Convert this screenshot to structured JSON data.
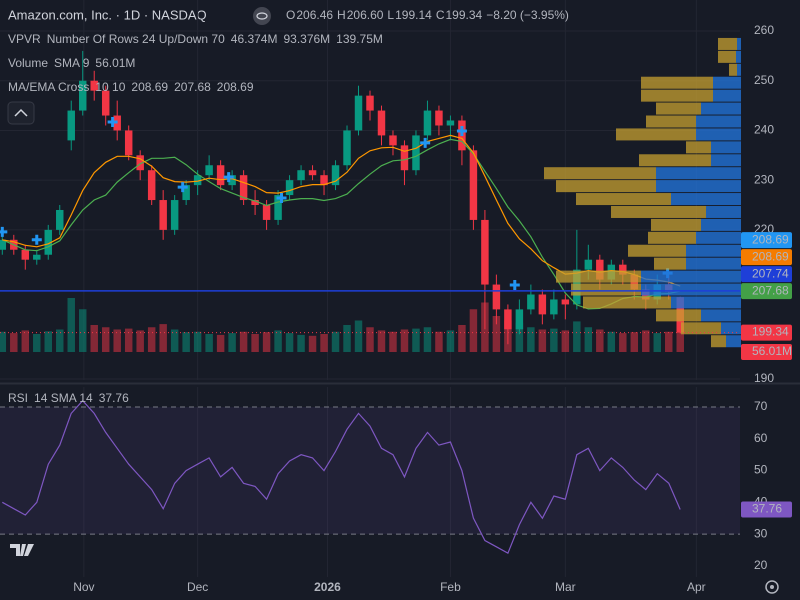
{
  "chart_data": {
    "type": "candlestick",
    "title": "Amazon.com, Inc. · 1D · NASDAQ",
    "ohlc_legend": {
      "labels": [
        "O",
        "H",
        "L",
        "C"
      ],
      "values": [
        206.46,
        206.6,
        199.14,
        199.34
      ],
      "value_labels": [
        "206.46",
        "206.60",
        "199.14",
        "199.34"
      ],
      "change_label": "−8.20 (−3.95%)",
      "color": "#f23645"
    },
    "xlim": [
      -0.2,
      64.2
    ],
    "xticks": [
      {
        "value": 7.1,
        "label": "Nov"
      },
      {
        "value": 17,
        "label": "Dec"
      },
      {
        "value": 28.3,
        "label": "2026"
      },
      {
        "value": 39,
        "label": "Feb"
      },
      {
        "value": 49,
        "label": "Mar"
      },
      {
        "value": 60.4,
        "label": "Apr"
      }
    ],
    "ylim": [
      189.8,
      266.24
    ],
    "yticks": [
      190,
      220,
      230,
      240,
      250,
      260
    ],
    "grid": true,
    "up_color": "#089981",
    "down_color": "#f23645",
    "open": [
      216,
      218,
      216,
      214,
      215,
      220,
      238,
      244,
      250,
      248,
      243,
      240,
      235,
      232,
      226,
      220,
      226,
      229,
      231,
      233,
      229,
      231,
      226,
      225,
      222,
      227,
      230,
      232,
      231,
      229,
      233,
      240,
      247,
      244,
      239,
      237,
      232,
      239,
      244,
      241,
      242,
      236,
      222,
      209,
      204,
      200,
      204,
      207,
      203,
      206,
      205,
      212,
      214,
      210,
      213,
      211,
      208,
      206,
      209,
      206.46
    ],
    "high": [
      219,
      219,
      217,
      216,
      221,
      225,
      246,
      256,
      252,
      249,
      246,
      241,
      236,
      233,
      228,
      227,
      230,
      232,
      235,
      234,
      232,
      232,
      228,
      226,
      228,
      231,
      233,
      233,
      232,
      234,
      241,
      249,
      248,
      245,
      240,
      238,
      240,
      246,
      245,
      243,
      243,
      237,
      224,
      211,
      205,
      206,
      209,
      208,
      208,
      207,
      220,
      217,
      215,
      214,
      214,
      212,
      209,
      211,
      211,
      206.6
    ],
    "low": [
      215,
      215,
      212,
      213,
      214,
      219,
      236,
      243,
      246,
      241,
      238,
      234,
      230,
      225,
      218,
      219,
      225,
      227,
      230,
      228,
      228,
      225,
      223,
      220,
      221,
      226,
      229,
      230,
      227,
      228,
      232,
      239,
      242,
      237,
      235,
      229,
      231,
      238,
      239,
      238,
      233,
      220,
      200,
      201,
      197,
      199,
      203,
      201,
      202,
      202,
      204,
      210,
      208,
      209,
      209,
      206,
      204,
      205,
      206,
      199.14
    ],
    "close": [
      218,
      216,
      214,
      215,
      220,
      224,
      244,
      250,
      248,
      243,
      240,
      235,
      232,
      226,
      220,
      226,
      229,
      231,
      233,
      229,
      231,
      226,
      225,
      222,
      227,
      230,
      232,
      231,
      229,
      233,
      240,
      247,
      244,
      239,
      237,
      232,
      239,
      244,
      241,
      242,
      236,
      222,
      209,
      204,
      200,
      204,
      207,
      203,
      206,
      205,
      212,
      214,
      210,
      213,
      211,
      208,
      206,
      209,
      207.54,
      199.34
    ],
    "volume": {
      "name": "Volume",
      "settings": "SMA 9",
      "sma_label": "56.01M",
      "color": "#f23645",
      "values": [
        45,
        42,
        48,
        40,
        46,
        50,
        120,
        95,
        60,
        55,
        50,
        52,
        48,
        55,
        62,
        50,
        44,
        45,
        40,
        38,
        42,
        45,
        40,
        44,
        48,
        42,
        38,
        36,
        40,
        45,
        60,
        70,
        55,
        48,
        45,
        50,
        52,
        55,
        45,
        48,
        60,
        95,
        110,
        80,
        70,
        65,
        55,
        50,
        52,
        48,
        68,
        55,
        50,
        45,
        42,
        44,
        48,
        42,
        45,
        56.01
      ]
    },
    "ma_cross": {
      "name": "MA/EMA Cross",
      "settings": "10 10",
      "legend_values": [
        208.69,
        207.68,
        208.69
      ],
      "legend_colors": [
        "#ff9800",
        "#4caf50",
        "#2196f3"
      ],
      "series": [
        {
          "color": "#4caf50",
          "values": [
            218,
            217,
            216,
            215.8,
            216.6,
            217.8,
            221,
            224,
            226,
            227,
            229.6,
            231.5,
            233.3,
            234.4,
            234.4,
            234.6,
            233.1,
            231.2,
            229.7,
            228.3,
            227.4,
            226.5,
            225.8,
            224.9,
            225.6,
            226,
            226.3,
            226.3,
            225.9,
            226.3,
            227.2,
            229.3,
            231.2,
            232.9,
            233.9,
            234.1,
            234.8,
            236.1,
            237.3,
            238.2,
            237.8,
            235.3,
            231.8,
            228.3,
            224.6,
            221.8,
            218.6,
            214.5,
            211,
            207.3,
            204.9,
            204.1,
            204.2,
            205.1,
            206.2,
            206.6,
            206.5,
            207.1,
            207.2,
            207.68
          ]
        },
        {
          "color": "#ff9800",
          "values": [
            218,
            217.6,
            216.9,
            216.6,
            217.2,
            218.4,
            223,
            227.9,
            231.5,
            233.6,
            234.8,
            234.8,
            234.3,
            232.8,
            230.5,
            229.7,
            229.6,
            229.8,
            230.4,
            230.1,
            230.3,
            229.5,
            228.7,
            227.5,
            227.4,
            227.9,
            228.7,
            229.1,
            229.1,
            229.8,
            231.6,
            234.4,
            235.9,
            236.5,
            236.6,
            235.8,
            236.4,
            237.8,
            238.4,
            239,
            238.4,
            235.5,
            230.8,
            226,
            221.3,
            218.2,
            216.2,
            213.8,
            212.4,
            211.1,
            211.3,
            211.8,
            211.5,
            211.8,
            211.6,
            211,
            210.1,
            209.9,
            209.5,
            208.69
          ]
        }
      ],
      "cross_color": "#2196f3",
      "cross_points": {
        "x": [
          0,
          3,
          9.6,
          15.7,
          19.7,
          24.3,
          36.8,
          40,
          44.6,
          57.9
        ],
        "y": [
          219.6,
          218,
          241.7,
          228.6,
          230.6,
          226.4,
          237.5,
          239.9,
          208.9,
          211.3
        ]
      }
    },
    "vpvr": {
      "name": "VPVR",
      "settings": "Number Of Rows 24 Up/Down 70",
      "values": [
        46.374,
        93.376,
        139.75
      ],
      "value_labels": [
        "46.374M",
        "93.376M",
        "139.75M"
      ],
      "label_colors": [
        "#4c8eea",
        "#e0ae2a",
        "#5d606b"
      ],
      "up_color": "#2272d6",
      "down_color": "#c7a030",
      "prices": [
        257.4,
        254.8,
        252.2,
        249.6,
        247,
        244.4,
        241.8,
        239.2,
        236.6,
        234,
        231.4,
        228.8,
        226.2,
        223.6,
        221,
        218.4,
        215.8,
        213.2,
        210.6,
        208,
        205.4,
        202.8,
        200.2,
        197.6
      ],
      "up": [
        0.4,
        0.5,
        0.4,
        2.8,
        2.8,
        4,
        4.5,
        4.5,
        3,
        3,
        8.5,
        8.5,
        7,
        3.5,
        4,
        4.5,
        5.5,
        5.5,
        10,
        10,
        7,
        4,
        2,
        1.5
      ],
      "down": [
        1.9,
        1.8,
        0.8,
        7.2,
        7.2,
        4.5,
        5,
        8,
        2.5,
        7.2,
        11.2,
        10,
        9.5,
        9.5,
        5,
        4.8,
        5.8,
        3.2,
        8.5,
        7,
        8.8,
        4.5,
        4,
        1.5
      ]
    },
    "price_tags": [
      {
        "value": 208.69,
        "color": "#2196f3"
      },
      {
        "value": 208.69,
        "color": "#f57c00"
      },
      {
        "value": 207.74,
        "color": "#1e3fd8",
        "line": "solid"
      },
      {
        "value": 207.68,
        "color": "#43a047"
      },
      {
        "value": 199.34,
        "color": "#f23645",
        "line": "dotted"
      },
      {
        "value": 56.01,
        "value_label": "56.01M",
        "color": "#f23645",
        "axis": "volume"
      }
    ],
    "rsi": {
      "name": "RSI",
      "settings": "14 SMA 14",
      "color": "#7e57c2",
      "last_value": 37.76,
      "ylim": [
        16.5,
        76.3
      ],
      "yticks": [
        20,
        30,
        40,
        50,
        60,
        70
      ],
      "band": [
        30,
        70
      ],
      "values": [
        40,
        38,
        36,
        40,
        52,
        58,
        68,
        72,
        68,
        62,
        57,
        52,
        48,
        44,
        38,
        46,
        50,
        52,
        54,
        48,
        51,
        46,
        45,
        41,
        49,
        53,
        55,
        54,
        50,
        56,
        63,
        68,
        64,
        57,
        55,
        48,
        57,
        62,
        58,
        59,
        50,
        35,
        28,
        26,
        24,
        33,
        40,
        35,
        42,
        41,
        55,
        57,
        50,
        54,
        51,
        47,
        44,
        49,
        46,
        37.76
      ]
    }
  }
}
